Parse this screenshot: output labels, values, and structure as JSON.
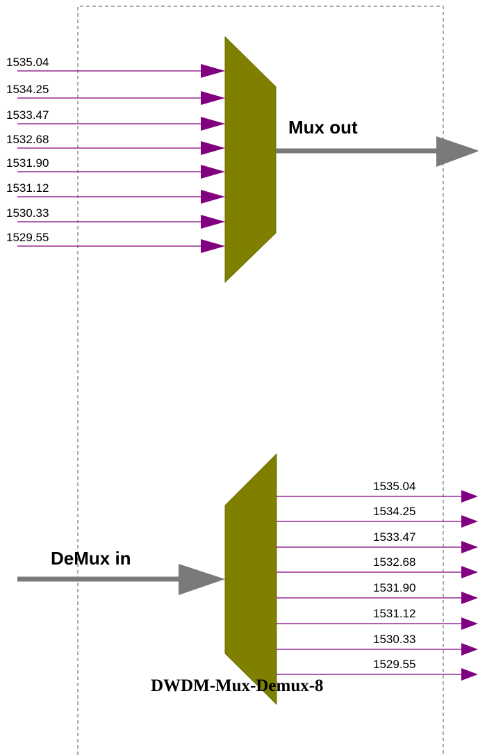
{
  "colors": {
    "shape_fill": "#808000",
    "shape_stroke": "#6b6b00",
    "channel_line": "#800080",
    "main_line": "#7a7a7a",
    "boundary": "#555555",
    "text": "#000000"
  },
  "mux": {
    "output_label": "Mux out",
    "channels": [
      "1535.04",
      "1534.25",
      "1533.47",
      "1532.68",
      "1531.90",
      "1531.12",
      "1530.33",
      "1529.55"
    ]
  },
  "demux": {
    "input_label": "DeMux in",
    "channels": [
      "1535.04",
      "1534.25",
      "1533.47",
      "1532.68",
      "1531.90",
      "1531.12",
      "1530.33",
      "1529.55"
    ]
  },
  "device_label": "DWDM-Mux-Demux-8"
}
